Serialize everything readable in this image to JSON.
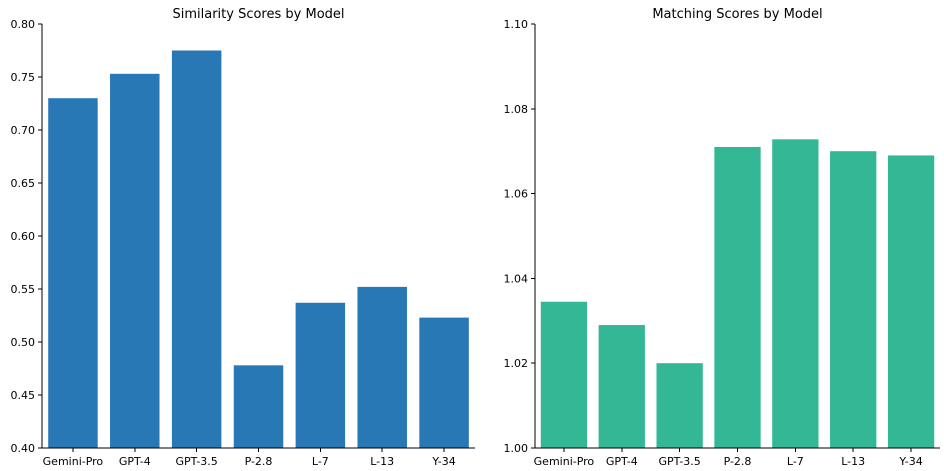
{
  "chart_data": [
    {
      "type": "bar",
      "title": "Similarity Scores by Model",
      "xlabel": "",
      "ylabel": "",
      "categories": [
        "Gemini-Pro",
        "GPT-4",
        "GPT-3.5",
        "P-2.8",
        "L-7",
        "L-13",
        "Y-34"
      ],
      "values": [
        0.73,
        0.753,
        0.775,
        0.478,
        0.537,
        0.552,
        0.523
      ],
      "ylim": [
        0.4,
        0.8
      ],
      "yticks": [
        "0.40",
        "0.45",
        "0.50",
        "0.55",
        "0.60",
        "0.65",
        "0.70",
        "0.75",
        "0.80"
      ],
      "color": "#2878b5",
      "grid": false,
      "spines": "left-bottom"
    },
    {
      "type": "bar",
      "title": "Matching Scores by Model",
      "xlabel": "",
      "ylabel": "",
      "categories": [
        "Gemini-Pro",
        "GPT-4",
        "GPT-3.5",
        "P-2.8",
        "L-7",
        "L-13",
        "Y-34"
      ],
      "values": [
        1.0345,
        1.029,
        1.02,
        1.071,
        1.0728,
        1.07,
        1.069
      ],
      "ylim": [
        1.0,
        1.1
      ],
      "yticks": [
        "1.00",
        "1.02",
        "1.04",
        "1.06",
        "1.08",
        "1.10"
      ],
      "color": "#33b795",
      "grid": false,
      "spines": "left-bottom"
    }
  ]
}
